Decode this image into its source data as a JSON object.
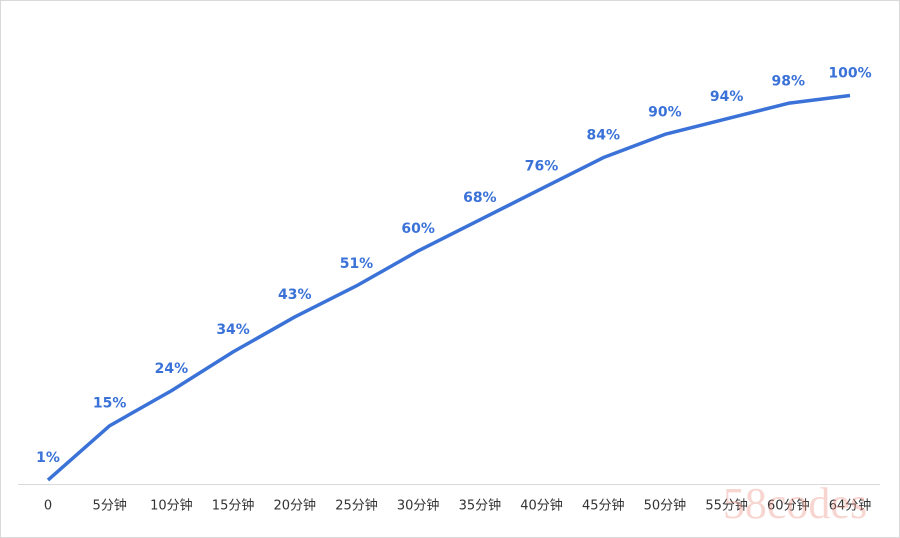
{
  "chart_data": {
    "type": "line",
    "categories": [
      "0",
      "5分钟",
      "10分钟",
      "15分钟",
      "20分钟",
      "25分钟",
      "30分钟",
      "35分钟",
      "40分钟",
      "45分钟",
      "50分钟",
      "55分钟",
      "60分钟",
      "64分钟"
    ],
    "series": [
      {
        "color": "#3a72d8",
        "values": [
          1,
          15,
          24,
          34,
          43,
          51,
          60,
          68,
          76,
          84,
          90,
          94,
          98,
          100
        ],
        "value_labels": [
          "1%",
          "15%",
          "24%",
          "34%",
          "43%",
          "51%",
          "60%",
          "68%",
          "76%",
          "84%",
          "90%",
          "94%",
          "98%",
          "100%"
        ]
      }
    ],
    "ylim": [
      0,
      100
    ],
    "drop_lines": true,
    "watermark": "58codes"
  }
}
